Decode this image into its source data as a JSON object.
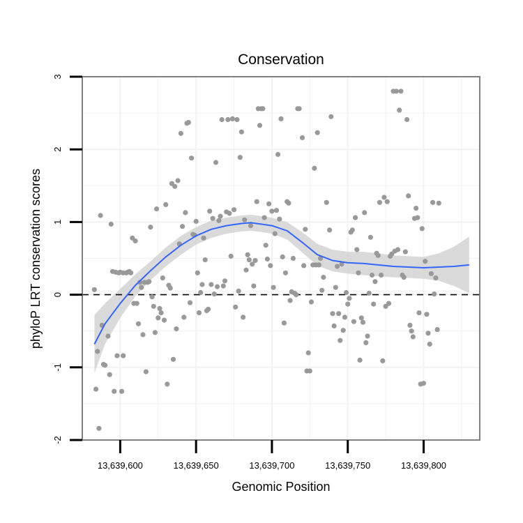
{
  "chart_data": {
    "type": "scatter",
    "title": "Conservation",
    "xlabel": "Genomic Position",
    "ylabel": "phyloP LRT conservation scores",
    "xlim": [
      13639575,
      13639837
    ],
    "ylim": [
      -2,
      3
    ],
    "x_ticks": [
      13639600,
      13639650,
      13639700,
      13639750,
      13639800
    ],
    "x_tick_labels": [
      "13,639,600",
      "13,639,650",
      "13,639,700",
      "13,639,750",
      "13,639,800"
    ],
    "y_ticks": [
      -2,
      -1,
      0,
      1,
      2,
      3
    ],
    "y_tick_labels": [
      "-2",
      "-1",
      "0",
      "1",
      "2",
      "3"
    ],
    "reference_line": {
      "y": 0,
      "style": "dashed"
    },
    "grid": true,
    "colors": {
      "points": "#999999",
      "smooth": "#3366ff",
      "ribbon": "#d3d3d3",
      "panel_border": "#7f7f7f",
      "grid": "#f2f2f2"
    },
    "points": [
      [
        13639583,
        0.07
      ],
      [
        13639584,
        -1.3
      ],
      [
        13639585,
        -0.78
      ],
      [
        13639586,
        -1.84
      ],
      [
        13639587,
        1.09
      ],
      [
        13639588,
        -0.42
      ],
      [
        13639589,
        -0.96
      ],
      [
        13639590,
        -0.97
      ],
      [
        13639592,
        -0.57
      ],
      [
        13639593,
        -1.1
      ],
      [
        13639594,
        0.97
      ],
      [
        13639595,
        0.32
      ],
      [
        13639596,
        -1.33
      ],
      [
        13639597,
        0.31
      ],
      [
        13639598,
        -0.84
      ],
      [
        13639599,
        0.3
      ],
      [
        13639600,
        0.31
      ],
      [
        13639601,
        -1.33
      ],
      [
        13639602,
        -0.84
      ],
      [
        13639602,
        0.3
      ],
      [
        13639604,
        0.3
      ],
      [
        13639605,
        0.31
      ],
      [
        13639606,
        0.32
      ],
      [
        13639607,
        0.3
      ],
      [
        13639608,
        0.78
      ],
      [
        13639609,
        -0.12
      ],
      [
        13639610,
        0.74
      ],
      [
        13639611,
        -0.12
      ],
      [
        13639612,
        -0.4
      ],
      [
        13639613,
        0.17
      ],
      [
        13639614,
        0.1
      ],
      [
        13639615,
        -0.55
      ],
      [
        13639616,
        0.17
      ],
      [
        13639617,
        -1.06
      ],
      [
        13639618,
        0.17
      ],
      [
        13639619,
        0.18
      ],
      [
        13639620,
        0.93
      ],
      [
        13639621,
        -0.03
      ],
      [
        13639622,
        -0.16
      ],
      [
        13639623,
        -0.52
      ],
      [
        13639624,
        1.18
      ],
      [
        13639625,
        -0.32
      ],
      [
        13639626,
        -0.19
      ],
      [
        13639627,
        -0.25
      ],
      [
        13639628,
        0.23
      ],
      [
        13639629,
        -0.35
      ],
      [
        13639630,
        1.24
      ],
      [
        13639631,
        -1.23
      ],
      [
        13639632,
        0.13
      ],
      [
        13639633,
        0.09
      ],
      [
        13639634,
        1.53
      ],
      [
        13639635,
        -0.89
      ],
      [
        13639636,
        1.49
      ],
      [
        13639637,
        -0.47
      ],
      [
        13639638,
        1.57
      ],
      [
        13639639,
        0.7
      ],
      [
        13639640,
        2.22
      ],
      [
        13639641,
        0.94
      ],
      [
        13639642,
        -0.31
      ],
      [
        13639643,
        1.13
      ],
      [
        13639644,
        2.36
      ],
      [
        13639645,
        2.37
      ],
      [
        13639646,
        -0.11
      ],
      [
        13639647,
        1.88
      ],
      [
        13639648,
        0.83
      ],
      [
        13639649,
        0.82
      ],
      [
        13639650,
        1.01
      ],
      [
        13639651,
        0.3
      ],
      [
        13639652,
        -0.25
      ],
      [
        13639653,
        0.03
      ],
      [
        13639654,
        0.14
      ],
      [
        13639655,
        0.78
      ],
      [
        13639656,
        0.48
      ],
      [
        13639657,
        -0.22
      ],
      [
        13639658,
        -0.2
      ],
      [
        13639659,
        1.15
      ],
      [
        13639660,
        0.14
      ],
      [
        13639661,
        1.05
      ],
      [
        13639662,
        0.01
      ],
      [
        13639663,
        1.82
      ],
      [
        13639664,
        0.11
      ],
      [
        13639665,
        1.02
      ],
      [
        13639666,
        1.08
      ],
      [
        13639667,
        2.41
      ],
      [
        13639668,
        0.12
      ],
      [
        13639669,
        0.19
      ],
      [
        13639670,
        1.14
      ],
      [
        13639671,
        2.41
      ],
      [
        13639672,
        1.12
      ],
      [
        13639673,
        0.53
      ],
      [
        13639674,
        2.42
      ],
      [
        13639675,
        1.17
      ],
      [
        13639676,
        -0.17
      ],
      [
        13639677,
        2.41
      ],
      [
        13639678,
        0.05
      ],
      [
        13639679,
        1.89
      ],
      [
        13639680,
        2.24
      ],
      [
        13639681,
        -0.31
      ],
      [
        13639682,
        1.03
      ],
      [
        13639683,
        0.34
      ],
      [
        13639684,
        0.55
      ],
      [
        13639685,
        0.48
      ],
      [
        13639686,
        0.95
      ],
      [
        13639687,
        0.42
      ],
      [
        13639688,
        0.12
      ],
      [
        13639689,
        0.47
      ],
      [
        13639690,
        1.28
      ],
      [
        13639691,
        2.56
      ],
      [
        13639692,
        2.33
      ],
      [
        13639693,
        2.56
      ],
      [
        13639694,
        2.56
      ],
      [
        13639695,
        1.06
      ],
      [
        13639696,
        0.68
      ],
      [
        13639697,
        0.49
      ],
      [
        13639698,
        1.25
      ],
      [
        13639699,
        0.4
      ],
      [
        13639700,
        1.15
      ],
      [
        13639701,
        0.1
      ],
      [
        13639702,
        0.84
      ],
      [
        13639703,
        1.16
      ],
      [
        13639704,
        1.93
      ],
      [
        13639705,
        1.04
      ],
      [
        13639706,
        2.42
      ],
      [
        13639707,
        0.52
      ],
      [
        13639708,
        -0.39
      ],
      [
        13639709,
        0.3
      ],
      [
        13639710,
        1.28
      ],
      [
        13639711,
        1.26
      ],
      [
        13639712,
        -0.08
      ],
      [
        13639713,
        0.04
      ],
      [
        13639714,
        0.5
      ],
      [
        13639715,
        0.02
      ],
      [
        13639716,
        0.0
      ],
      [
        13639717,
        2.56
      ],
      [
        13639718,
        2.56
      ],
      [
        13639720,
        2.16
      ],
      [
        13639721,
        0.4
      ],
      [
        13639722,
        0.9
      ],
      [
        13639723,
        -1.05
      ],
      [
        13639724,
        -0.8
      ],
      [
        13639725,
        -1.05
      ],
      [
        13639726,
        -0.1
      ],
      [
        13639727,
        0.41
      ],
      [
        13639728,
        1.74
      ],
      [
        13639729,
        0.41
      ],
      [
        13639730,
        2.23
      ],
      [
        13639731,
        0.41
      ],
      [
        13639732,
        0.5
      ],
      [
        13639733,
        0.06
      ],
      [
        13639734,
        0.24
      ],
      [
        13639736,
        1.27
      ],
      [
        13639738,
        0.89
      ],
      [
        13639739,
        2.45
      ],
      [
        13639740,
        -0.26
      ],
      [
        13639741,
        -0.43
      ],
      [
        13639742,
        0.1
      ],
      [
        13639743,
        0.39
      ],
      [
        13639744,
        -0.26
      ],
      [
        13639745,
        -0.63
      ],
      [
        13639746,
        0.42
      ],
      [
        13639747,
        -0.49
      ],
      [
        13639748,
        -0.31
      ],
      [
        13639749,
        0.03
      ],
      [
        13639750,
        -0.13
      ],
      [
        13639751,
        -0.05
      ],
      [
        13639752,
        0.86
      ],
      [
        13639753,
        0.89
      ],
      [
        13639754,
        -0.37
      ],
      [
        13639755,
        1.06
      ],
      [
        13639756,
        0.62
      ],
      [
        13639757,
        0.3
      ],
      [
        13639758,
        -0.9
      ],
      [
        13639759,
        -0.32
      ],
      [
        13639760,
        -0.38
      ],
      [
        13639761,
        1.13
      ],
      [
        13639762,
        -0.66
      ],
      [
        13639763,
        -0.57
      ],
      [
        13639764,
        0.02
      ],
      [
        13639765,
        0.79
      ],
      [
        13639766,
        0.27
      ],
      [
        13639767,
        -0.13
      ],
      [
        13639768,
        0.18
      ],
      [
        13639769,
        0.57
      ],
      [
        13639770,
        0.54
      ],
      [
        13639771,
        1.27
      ],
      [
        13639772,
        0.27
      ],
      [
        13639773,
        -0.91
      ],
      [
        13639774,
        1.34
      ],
      [
        13639775,
        -0.16
      ],
      [
        13639776,
        1.28
      ],
      [
        13639777,
        -0.12
      ],
      [
        13639778,
        0.53
      ],
      [
        13639779,
        0.56
      ],
      [
        13639780,
        2.8
      ],
      [
        13639781,
        0.6
      ],
      [
        13639782,
        2.8
      ],
      [
        13639783,
        0.62
      ],
      [
        13639784,
        2.54
      ],
      [
        13639785,
        2.8
      ],
      [
        13639786,
        0.27
      ],
      [
        13639787,
        0.24
      ],
      [
        13639788,
        0.59
      ],
      [
        13639789,
        2.41
      ],
      [
        13639790,
        1.36
      ],
      [
        13639791,
        -0.42
      ],
      [
        13639792,
        -0.5
      ],
      [
        13639793,
        -0.58
      ],
      [
        13639794,
        1.05
      ],
      [
        13639795,
        1.19
      ],
      [
        13639796,
        1.06
      ],
      [
        13639797,
        -0.25
      ],
      [
        13639798,
        -1.23
      ],
      [
        13639799,
        0.91
      ],
      [
        13639800,
        -1.22
      ],
      [
        13639801,
        0.46
      ],
      [
        13639802,
        -0.27
      ],
      [
        13639803,
        -0.53
      ],
      [
        13639804,
        -0.68
      ],
      [
        13639805,
        0.29
      ],
      [
        13639806,
        1.27
      ],
      [
        13639807,
        0.01
      ],
      [
        13639808,
        0.23
      ],
      [
        13639809,
        -0.48
      ],
      [
        13639810,
        1.26
      ]
    ],
    "smooth_line": {
      "x": [
        13639583,
        13639590,
        13639600,
        13639610,
        13639620,
        13639630,
        13639640,
        13639650,
        13639660,
        13639670,
        13639680,
        13639686,
        13639690,
        13639700,
        13639710,
        13639720,
        13639730,
        13639740,
        13639750,
        13639760,
        13639770,
        13639780,
        13639790,
        13639800,
        13639810,
        13639820,
        13639830
      ],
      "y": [
        -0.68,
        -0.4,
        -0.12,
        0.13,
        0.33,
        0.52,
        0.68,
        0.81,
        0.9,
        0.95,
        0.98,
        0.99,
        0.98,
        0.95,
        0.88,
        0.72,
        0.55,
        0.47,
        0.44,
        0.43,
        0.41,
        0.39,
        0.38,
        0.37,
        0.38,
        0.39,
        0.41
      ],
      "ci_lower": [
        -1.08,
        -0.68,
        -0.32,
        -0.02,
        0.2,
        0.39,
        0.55,
        0.69,
        0.78,
        0.84,
        0.87,
        0.88,
        0.87,
        0.84,
        0.76,
        0.58,
        0.4,
        0.32,
        0.29,
        0.27,
        0.25,
        0.24,
        0.23,
        0.22,
        0.19,
        0.12,
        0.02
      ],
      "ci_upper": [
        -0.28,
        -0.12,
        0.08,
        0.28,
        0.46,
        0.65,
        0.81,
        0.93,
        1.02,
        1.06,
        1.09,
        1.1,
        1.09,
        1.06,
        1.0,
        0.86,
        0.7,
        0.62,
        0.59,
        0.59,
        0.57,
        0.54,
        0.53,
        0.52,
        0.57,
        0.66,
        0.8
      ]
    }
  }
}
